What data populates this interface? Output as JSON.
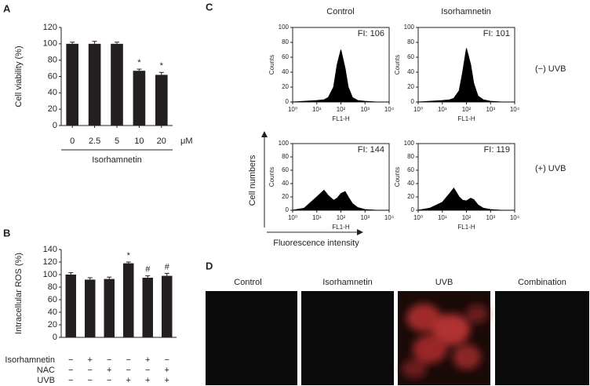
{
  "panel_letters": [
    "A",
    "B",
    "C",
    "D"
  ],
  "panel_c": {
    "columns": [
      "Control",
      "Isorhamnetin"
    ],
    "rows": [
      "(−) UVB",
      "(+) UVB"
    ],
    "y_arrow": "Cell numbers",
    "x_arrow": "Fluorescence intensity"
  },
  "panel_d": {
    "labels": [
      "Control",
      "Isorhamnetin",
      "UVB",
      "Combination"
    ]
  },
  "chart_data": [
    {
      "type": "bar",
      "ylabel": "Cell viability (%)",
      "xlabel": "Isorhamnetin",
      "x_unit": "μM",
      "categories": [
        "0",
        "2.5",
        "5",
        "10",
        "20"
      ],
      "values": [
        100,
        100,
        100,
        67,
        62
      ],
      "errors": [
        2,
        3,
        2,
        2,
        3
      ],
      "markers": [
        null,
        null,
        null,
        "*",
        "*"
      ],
      "color": "#231f20",
      "ylim": [
        0,
        120
      ],
      "yticks": [
        0,
        20,
        40,
        60,
        80,
        100,
        120
      ]
    },
    {
      "type": "bar",
      "ylabel": "Intracellular ROS (%)",
      "values": [
        100,
        92,
        93,
        118,
        95,
        98
      ],
      "errors": [
        3,
        3,
        3,
        2,
        3,
        4
      ],
      "markers": [
        null,
        null,
        null,
        "*",
        "#",
        "#"
      ],
      "color": "#231f20",
      "ylim": [
        0,
        140
      ],
      "yticks": [
        0,
        20,
        40,
        60,
        80,
        100,
        120,
        140
      ],
      "conditions": [
        {
          "name": "Isorhamnetin",
          "signs": [
            "−",
            "+",
            "−",
            "−",
            "+",
            "−"
          ]
        },
        {
          "name": "NAC",
          "signs": [
            "−",
            "−",
            "+",
            "−",
            "−",
            "+"
          ]
        },
        {
          "name": "UVB",
          "signs": [
            "−",
            "−",
            "−",
            "+",
            "+",
            "+"
          ]
        }
      ]
    },
    {
      "type": "area",
      "title": "FI: 106",
      "ylabel": "Counts",
      "xlabel": "FL1-H",
      "log_x": true,
      "color": "#000000",
      "x": [
        1,
        3,
        10,
        20,
        30,
        50,
        70,
        100,
        150,
        200,
        300,
        500,
        1000,
        3000,
        10000
      ],
      "values": [
        0,
        1,
        2,
        3,
        6,
        20,
        50,
        70,
        45,
        20,
        6,
        2,
        1,
        0,
        0
      ],
      "xlim": [
        1,
        10000
      ],
      "xticks": [
        {
          "value": 1,
          "label": "10⁰"
        },
        {
          "value": 10,
          "label": "10¹"
        },
        {
          "value": 100,
          "label": "10²"
        },
        {
          "value": 1000,
          "label": "10³"
        },
        {
          "value": 10000,
          "label": "10⁴"
        }
      ],
      "ylim": [
        0,
        100
      ],
      "yticks": [
        0,
        20,
        40,
        60,
        80,
        100
      ]
    },
    {
      "type": "area",
      "title": "FI: 101",
      "ylabel": "Counts",
      "xlabel": "FL1-H",
      "log_x": true,
      "color": "#000000",
      "x": [
        1,
        3,
        10,
        20,
        30,
        50,
        70,
        100,
        150,
        200,
        300,
        500,
        1000,
        3000,
        10000
      ],
      "values": [
        0,
        1,
        2,
        3,
        5,
        15,
        40,
        72,
        50,
        25,
        8,
        3,
        1,
        0,
        0
      ],
      "xlim": [
        1,
        10000
      ],
      "xticks": [
        {
          "value": 1,
          "label": "10⁰"
        },
        {
          "value": 10,
          "label": "10¹"
        },
        {
          "value": 100,
          "label": "10²"
        },
        {
          "value": 1000,
          "label": "10³"
        },
        {
          "value": 10000,
          "label": "10⁴"
        }
      ],
      "ylim": [
        0,
        100
      ],
      "yticks": [
        0,
        20,
        40,
        60,
        80,
        100
      ]
    },
    {
      "type": "area",
      "title": "FI: 144",
      "ylabel": "Counts",
      "xlabel": "FL1-H",
      "log_x": true,
      "color": "#000000",
      "x": [
        1,
        3,
        10,
        20,
        30,
        50,
        70,
        100,
        150,
        200,
        300,
        500,
        1000,
        3000,
        10000
      ],
      "values": [
        0,
        3,
        20,
        30,
        22,
        15,
        18,
        25,
        28,
        20,
        10,
        4,
        1,
        0,
        0
      ],
      "xlim": [
        1,
        10000
      ],
      "xticks": [
        {
          "value": 1,
          "label": "10⁰"
        },
        {
          "value": 10,
          "label": "10¹"
        },
        {
          "value": 100,
          "label": "10²"
        },
        {
          "value": 1000,
          "label": "10³"
        },
        {
          "value": 10000,
          "label": "10⁴"
        }
      ],
      "ylim": [
        0,
        100
      ],
      "yticks": [
        0,
        20,
        40,
        60,
        80,
        100
      ]
    },
    {
      "type": "area",
      "title": "FI: 119",
      "ylabel": "Counts",
      "xlabel": "FL1-H",
      "log_x": true,
      "color": "#000000",
      "x": [
        1,
        3,
        10,
        20,
        30,
        50,
        70,
        100,
        150,
        200,
        300,
        500,
        1000,
        3000,
        10000
      ],
      "values": [
        0,
        3,
        12,
        25,
        33,
        20,
        15,
        14,
        18,
        16,
        8,
        3,
        1,
        0,
        0
      ],
      "xlim": [
        1,
        10000
      ],
      "xticks": [
        {
          "value": 1,
          "label": "10⁰"
        },
        {
          "value": 10,
          "label": "10¹"
        },
        {
          "value": 100,
          "label": "10²"
        },
        {
          "value": 1000,
          "label": "10³"
        },
        {
          "value": 10000,
          "label": "10⁴"
        }
      ],
      "ylim": [
        0,
        100
      ],
      "yticks": [
        0,
        20,
        40,
        60,
        80,
        100
      ]
    }
  ]
}
